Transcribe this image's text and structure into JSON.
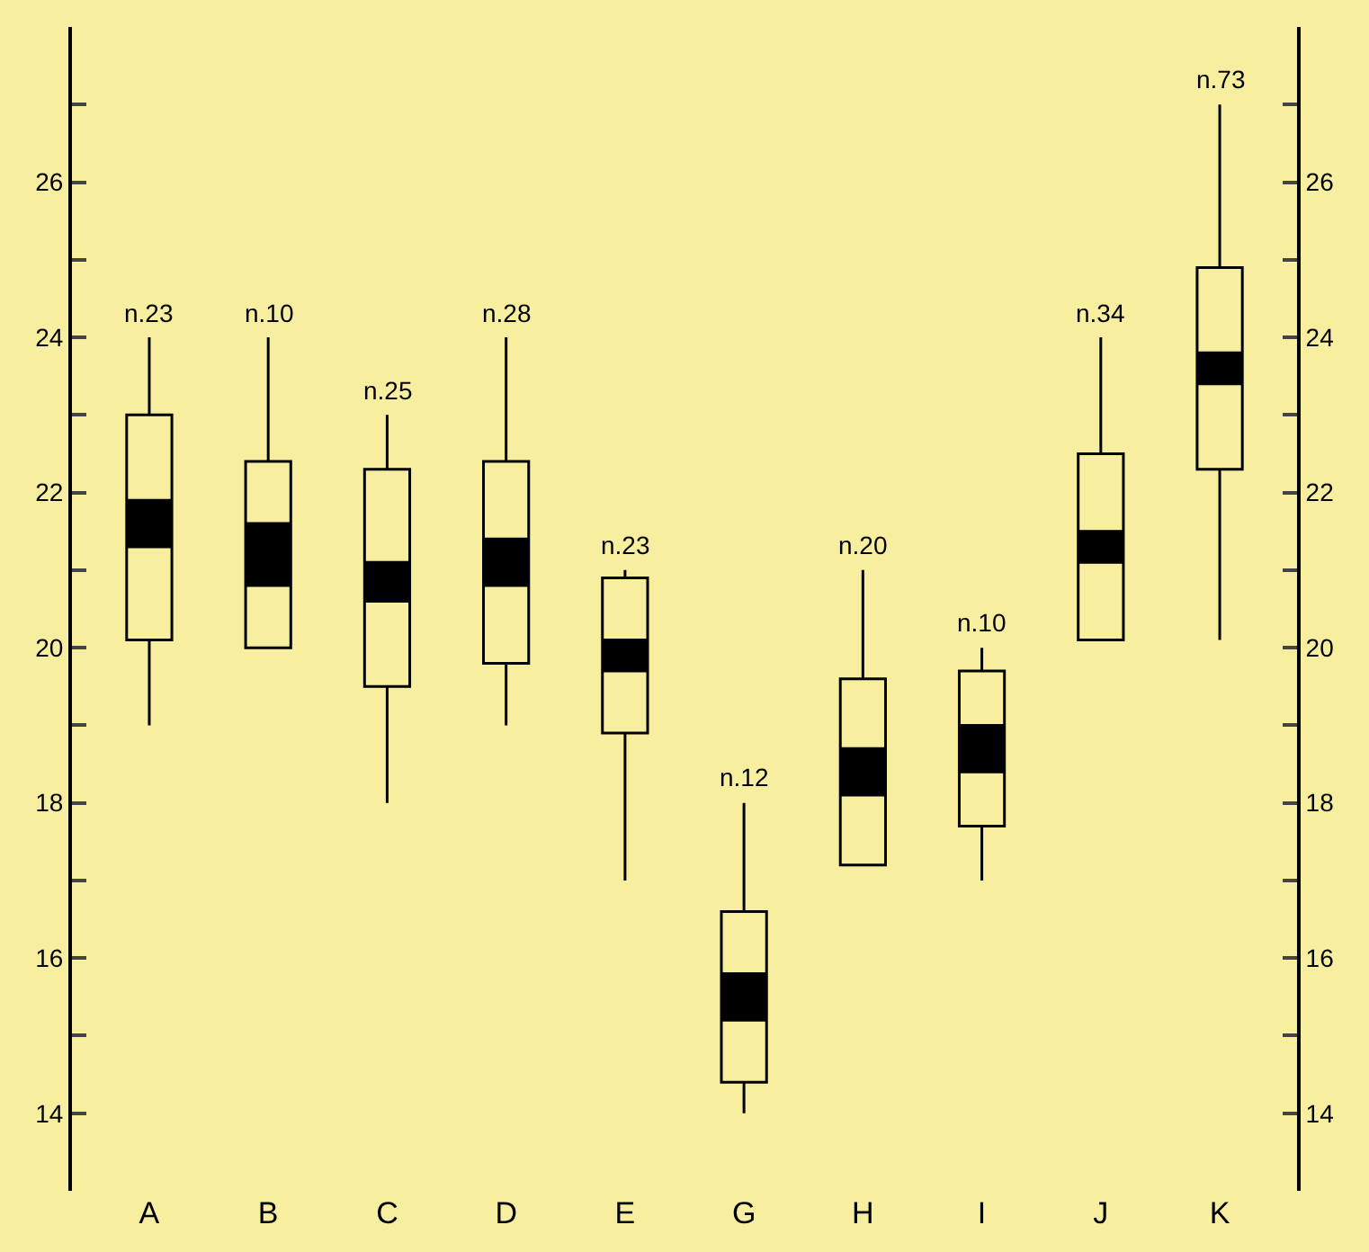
{
  "chart_data": {
    "type": "box",
    "categories": [
      "A",
      "B",
      "C",
      "D",
      "E",
      "G",
      "H",
      "I",
      "J",
      "K"
    ],
    "series": [
      {
        "color": "#000000",
        "boxes": [
          {
            "low": 19,
            "q1": 20.1,
            "median": 21.6,
            "q3": 23.0,
            "high": 24
          },
          {
            "low": 20,
            "q1": 20.0,
            "median": 21.2,
            "q3": 22.4,
            "high": 24
          },
          {
            "low": 18,
            "q1": 19.5,
            "median": 20.9,
            "q3": 22.3,
            "high": 23
          },
          {
            "low": 19,
            "q1": 19.8,
            "median": 21.1,
            "q3": 22.4,
            "high": 24
          },
          {
            "low": 17,
            "q1": 18.9,
            "median": 19.9,
            "q3": 20.9,
            "high": 21
          },
          {
            "low": 14,
            "q1": 14.4,
            "median": 15.5,
            "q3": 16.6,
            "high": 18
          },
          {
            "low": 17.2,
            "q1": 17.2,
            "median": 18.4,
            "q3": 19.6,
            "high": 21
          },
          {
            "low": 17,
            "q1": 17.7,
            "median": 18.7,
            "q3": 19.7,
            "high": 20
          },
          {
            "low": 20.1,
            "q1": 20.1,
            "median": 21.3,
            "q3": 22.5,
            "high": 24
          },
          {
            "low": 20.1,
            "q1": 22.3,
            "median": 23.6,
            "q3": 24.9,
            "high": 27
          }
        ]
      },
      {
        "color": "#000000",
        "boxes": [
          {
            "low": 21.3,
            "q1": 21.3,
            "median": 21.6,
            "q3": 21.9,
            "high": 21.9
          },
          {
            "low": 20.8,
            "q1": 20.8,
            "median": 21.2,
            "q3": 21.6,
            "high": 21.6
          },
          {
            "low": 20.6,
            "q1": 20.6,
            "median": 20.9,
            "q3": 21.1,
            "high": 21.1
          },
          {
            "low": 20.8,
            "q1": 20.8,
            "median": 21.1,
            "q3": 21.4,
            "high": 21.4
          },
          {
            "low": 19.7,
            "q1": 19.7,
            "median": 19.9,
            "q3": 20.1,
            "high": 20.1
          },
          {
            "low": 15.2,
            "q1": 15.2,
            "median": 15.5,
            "q3": 15.8,
            "high": 15.8
          },
          {
            "low": 18.1,
            "q1": 18.1,
            "median": 18.4,
            "q3": 18.7,
            "high": 18.7
          },
          {
            "low": 18.4,
            "q1": 18.4,
            "median": 18.7,
            "q3": 19.0,
            "high": 19.0
          },
          {
            "low": 21.1,
            "q1": 21.1,
            "median": 21.3,
            "q3": 21.5,
            "high": 21.5
          },
          {
            "low": 23.4,
            "q1": 23.4,
            "median": 23.6,
            "q3": 23.8,
            "high": 23.8
          }
        ]
      }
    ],
    "annotations": [
      {
        "text": "n.23",
        "x": "A",
        "y": 24
      },
      {
        "text": "n.10",
        "x": "B",
        "y": 24
      },
      {
        "text": "n.25",
        "x": "C",
        "y": 23
      },
      {
        "text": "n.28",
        "x": "D",
        "y": 24
      },
      {
        "text": "n.23",
        "x": "E",
        "y": 21
      },
      {
        "text": "n.12",
        "x": "G",
        "y": 18
      },
      {
        "text": "n.20",
        "x": "H",
        "y": 21
      },
      {
        "text": "n.10",
        "x": "I",
        "y": 20
      },
      {
        "text": "n.34",
        "x": "J",
        "y": 24
      },
      {
        "text": "n.73",
        "x": "K",
        "y": 27
      }
    ],
    "ylim": [
      13,
      28
    ],
    "yticks": [
      14,
      {
        "value": 15,
        "label": null
      },
      16,
      {
        "value": 17,
        "label": null
      },
      18,
      {
        "value": 19,
        "label": null
      },
      20,
      {
        "value": 21,
        "label": null
      },
      22,
      {
        "value": 23,
        "label": null
      },
      24,
      {
        "value": 25,
        "label": null
      },
      26,
      {
        "value": 27,
        "label": null
      }
    ],
    "y2lim": [
      13,
      28
    ],
    "y2ticks": [
      14,
      {
        "value": 15,
        "label": null
      },
      16,
      {
        "value": 17,
        "label": null
      },
      18,
      {
        "value": 19,
        "label": null
      },
      20,
      {
        "value": 21,
        "label": null
      },
      22,
      {
        "value": 23,
        "label": null
      },
      24,
      {
        "value": 25,
        "label": null
      },
      26,
      {
        "value": 27,
        "label": null
      }
    ],
    "grid": false,
    "legend": false
  }
}
